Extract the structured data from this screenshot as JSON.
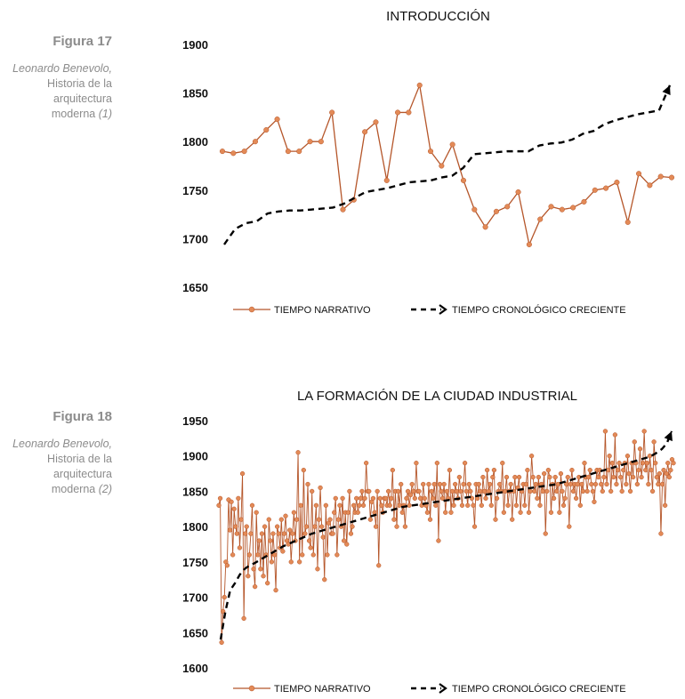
{
  "figures": [
    {
      "label": "Figura 17",
      "author": "Leonardo Benevolo,",
      "lines": [
        "Historia de la",
        "arquitectura"
      ],
      "last_line": "moderna",
      "suffix": "(1)"
    },
    {
      "label": "Figura 18",
      "author": "Leonardo Benevolo,",
      "lines": [
        "Historia de la",
        "arquitectura"
      ],
      "last_line": "moderna",
      "suffix": "(2)"
    }
  ],
  "colors": {
    "narrative": "#b5562a",
    "marker": "#e38a57",
    "chronological": "#000000",
    "caption": "#8c8c8c"
  },
  "chart_data": [
    {
      "type": "line",
      "title": "INTRODUCCIÓN",
      "xlabel": "",
      "ylabel": "",
      "ylim": [
        1650,
        1900
      ],
      "yticks": [
        1650,
        1700,
        1750,
        1800,
        1850,
        1900
      ],
      "grid": false,
      "legend": "bottom",
      "series": [
        {
          "name": "TIEMPO NARRATIVO",
          "style": "solid-markers",
          "values": [
            1790,
            1788,
            1790,
            1800,
            1812,
            1823,
            1790,
            1790,
            1800,
            1800,
            1830,
            1730,
            1740,
            1810,
            1820,
            1760,
            1830,
            1830,
            1858,
            1790,
            1775,
            1797,
            1760,
            1730,
            1712,
            1728,
            1733,
            1748,
            1694,
            1720,
            1733,
            1730,
            1732,
            1738,
            1750,
            1752,
            1758,
            1717,
            1767,
            1755,
            1764,
            1763
          ]
        },
        {
          "name": "TIEMPO CRONOLÓGICO CRECIENTE",
          "style": "dashed-arrow",
          "values": [
            1694,
            1710,
            1716,
            1718,
            1726,
            1728,
            1729,
            1729,
            1730,
            1731,
            1732,
            1736,
            1742,
            1748,
            1750,
            1752,
            1755,
            1758,
            1759,
            1760,
            1763,
            1765,
            1773,
            1787,
            1788,
            1789,
            1790,
            1790,
            1790,
            1796,
            1798,
            1799,
            1802,
            1808,
            1811,
            1818,
            1822,
            1825,
            1828,
            1830,
            1832,
            1858
          ]
        }
      ]
    },
    {
      "type": "line",
      "title": "LA FORMACIÓN DE LA CIUDAD INDUSTRIAL",
      "xlabel": "",
      "ylabel": "",
      "ylim": [
        1600,
        1950
      ],
      "yticks": [
        1600,
        1650,
        1700,
        1750,
        1800,
        1850,
        1900,
        1950
      ],
      "grid": false,
      "legend": "bottom",
      "series": [
        {
          "name": "TIEMPO NARRATIVO",
          "style": "solid-markers",
          "values": [
            1830,
            1840,
            1636,
            1680,
            1700,
            1750,
            1745,
            1838,
            1795,
            1835,
            1760,
            1825,
            1800,
            1790,
            1840,
            1770,
            1810,
            1875,
            1670,
            1790,
            1800,
            1730,
            1760,
            1790,
            1830,
            1740,
            1715,
            1820,
            1760,
            1780,
            1740,
            1790,
            1730,
            1800,
            1760,
            1720,
            1810,
            1780,
            1750,
            1790,
            1760,
            1710,
            1800,
            1790,
            1770,
            1810,
            1765,
            1790,
            1815,
            1780,
            1775,
            1795,
            1750,
            1790,
            1820,
            1780,
            1810,
            1905,
            1750,
            1830,
            1760,
            1880,
            1790,
            1800,
            1860,
            1780,
            1770,
            1850,
            1760,
            1800,
            1830,
            1740,
            1810,
            1855,
            1800,
            1785,
            1725,
            1830,
            1760,
            1805,
            1810,
            1790,
            1790,
            1820,
            1840,
            1760,
            1810,
            1830,
            1800,
            1840,
            1780,
            1820,
            1775,
            1820,
            1850,
            1790,
            1800,
            1830,
            1820,
            1840,
            1820,
            1830,
            1840,
            1850,
            1830,
            1840,
            1890,
            1850,
            1850,
            1810,
            1835,
            1840,
            1820,
            1800,
            1850,
            1745,
            1840,
            1830,
            1820,
            1840,
            1840,
            1830,
            1850,
            1830,
            1840,
            1880,
            1810,
            1850,
            1800,
            1850,
            1830,
            1860,
            1820,
            1830,
            1800,
            1840,
            1850,
            1830,
            1845,
            1860,
            1850,
            1840,
            1890,
            1850,
            1850,
            1840,
            1830,
            1860,
            1840,
            1830,
            1820,
            1860,
            1810,
            1850,
            1840,
            1860,
            1830,
            1890,
            1780,
            1860,
            1850,
            1840,
            1860,
            1820,
            1850,
            1840,
            1880,
            1820,
            1850,
            1830,
            1860,
            1850,
            1840,
            1870,
            1850,
            1830,
            1860,
            1890,
            1850,
            1830,
            1860,
            1850,
            1840,
            1830,
            1800,
            1860,
            1840,
            1860,
            1850,
            1830,
            1870,
            1850,
            1840,
            1880,
            1850,
            1860,
            1830,
            1870,
            1880,
            1810,
            1840,
            1850,
            1860,
            1850,
            1890,
            1820,
            1850,
            1870,
            1830,
            1850,
            1860,
            1810,
            1850,
            1870,
            1830,
            1855,
            1870,
            1820,
            1850,
            1860,
            1830,
            1860,
            1880,
            1820,
            1850,
            1900,
            1870,
            1850,
            1860,
            1840,
            1870,
            1830,
            1860,
            1850,
            1875,
            1790,
            1850,
            1880,
            1870,
            1820,
            1860,
            1840,
            1870,
            1850,
            1860,
            1820,
            1875,
            1850,
            1830,
            1840,
            1860,
            1870,
            1800,
            1860,
            1880,
            1850,
            1860,
            1840,
            1860,
            1870,
            1830,
            1860,
            1850,
            1890,
            1870,
            1850,
            1870,
            1880,
            1860,
            1850,
            1835,
            1860,
            1880,
            1870,
            1880,
            1860,
            1850,
            1870,
            1935,
            1860,
            1880,
            1900,
            1850,
            1890,
            1870,
            1930,
            1860,
            1880,
            1890,
            1870,
            1850,
            1880,
            1890,
            1860,
            1900,
            1875,
            1850,
            1890,
            1870,
            1920,
            1890,
            1860,
            1880,
            1910,
            1870,
            1890,
            1935,
            1880,
            1890,
            1860,
            1900,
            1880,
            1850,
            1920,
            1890,
            1870,
            1860,
            1875,
            1790,
            1860,
            1880,
            1830,
            1875,
            1890,
            1870,
            1880,
            1895,
            1890
          ]
        },
        {
          "name": "TIEMPO CRONOLÓGICO CRECIENTE",
          "style": "dashed-arrow",
          "values": [
            1640,
            1680,
            1710,
            1720,
            1732,
            1740,
            1745,
            1748,
            1752,
            1756,
            1760,
            1764,
            1768,
            1772,
            1775,
            1778,
            1781,
            1784,
            1787,
            1790,
            1792,
            1794,
            1796,
            1798,
            1800,
            1802,
            1804,
            1806,
            1808,
            1810,
            1812,
            1814,
            1816,
            1818,
            1820,
            1822,
            1824,
            1826,
            1828,
            1829,
            1830,
            1831,
            1832,
            1833,
            1834,
            1835,
            1836,
            1837,
            1838,
            1839,
            1840,
            1841,
            1842,
            1843,
            1844,
            1845,
            1846,
            1847,
            1848,
            1849,
            1850,
            1851,
            1852,
            1853,
            1854,
            1855,
            1856,
            1857,
            1858,
            1859,
            1860,
            1862,
            1864,
            1866,
            1868,
            1870,
            1872,
            1874,
            1876,
            1878,
            1880,
            1882,
            1884,
            1886,
            1888,
            1890,
            1892,
            1894,
            1896,
            1898,
            1901,
            1905,
            1910,
            1918,
            1935
          ]
        }
      ]
    }
  ]
}
